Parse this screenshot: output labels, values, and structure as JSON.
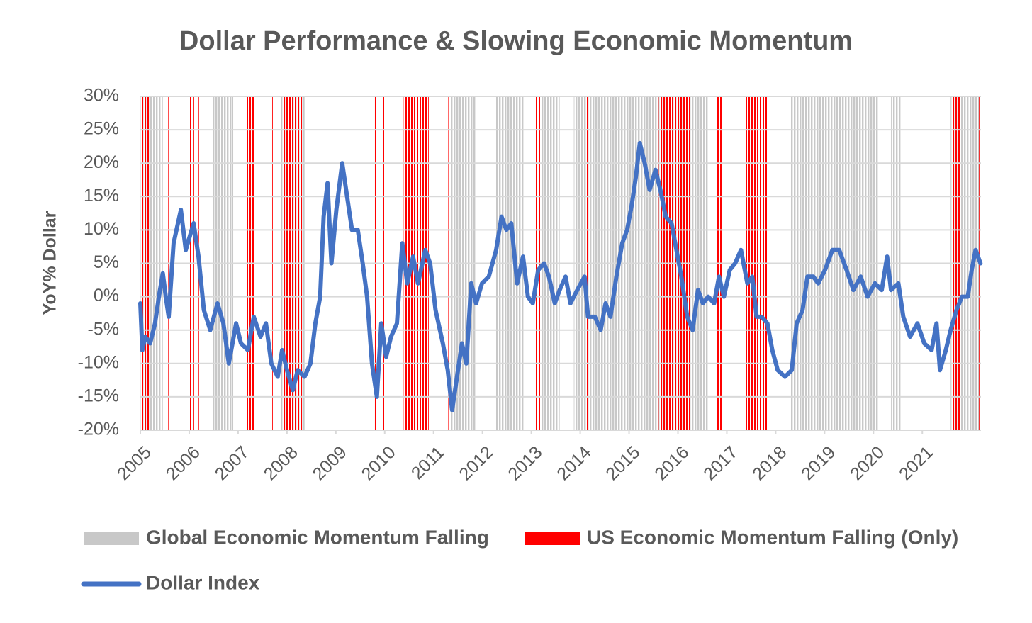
{
  "chart_data": {
    "type": "line",
    "title": "Dollar Performance & Slowing Economic Momentum",
    "ylabel": "YoY% Dollar",
    "xlim": [
      2005,
      2022.2
    ],
    "xticks": [
      2005,
      2006,
      2007,
      2008,
      2009,
      2010,
      2011,
      2012,
      2013,
      2014,
      2015,
      2016,
      2017,
      2018,
      2019,
      2020,
      2021
    ],
    "ylim": [
      -20,
      30
    ],
    "yticks": [
      {
        "value": -20,
        "label": "-20%"
      },
      {
        "value": -15,
        "label": "-15%"
      },
      {
        "value": -10,
        "label": "-10%"
      },
      {
        "value": -5,
        "label": "-5%"
      },
      {
        "value": 0,
        "label": "0%"
      },
      {
        "value": 5,
        "label": "5%"
      },
      {
        "value": 10,
        "label": "10%"
      },
      {
        "value": 15,
        "label": "15%"
      },
      {
        "value": 20,
        "label": "20%"
      },
      {
        "value": 25,
        "label": "25%"
      },
      {
        "value": 30,
        "label": "30%"
      }
    ],
    "grid": true,
    "series": [
      {
        "name": "Global Economic Momentum Falling",
        "color": "#c8c8c8",
        "intervals": [
          [
            2005,
            2005.46
          ],
          [
            2006.49,
            2006.9
          ],
          [
            2007.86,
            2008.36
          ],
          [
            2011.36,
            2011.87
          ],
          [
            2012.28,
            2012.86
          ],
          [
            2013.22,
            2013.58
          ],
          [
            2013.87,
            2016.62
          ],
          [
            2018.29,
            2020.1
          ],
          [
            2020.36,
            2020.57
          ],
          [
            2021.58,
            2022.19
          ]
        ]
      },
      {
        "name": "US Economic Momentum Falling (Only)",
        "color": "#ff0000",
        "intervals": [
          [
            2005,
            2005.2
          ],
          [
            2005.57,
            2005.59
          ],
          [
            2006.0,
            2006.1
          ],
          [
            2006.17,
            2006.2
          ],
          [
            2007.16,
            2007.33
          ],
          [
            2007.68,
            2007.71
          ],
          [
            2007.9,
            2008.33
          ],
          [
            2009.8,
            2009.83
          ],
          [
            2009.96,
            2009.99
          ],
          [
            2010.39,
            2010.9
          ],
          [
            2011.3,
            2011.33
          ],
          [
            2013.07,
            2013.19
          ],
          [
            2014.13,
            2014.2
          ],
          [
            2015.61,
            2016.26
          ],
          [
            2016.8,
            2016.91
          ],
          [
            2017.39,
            2017.83
          ],
          [
            2021.62,
            2021.77
          ],
          [
            2022.16,
            2022.19
          ]
        ]
      },
      {
        "name": "Dollar Index",
        "color": "#4472c4",
        "x": [
          2005.0,
          2005.04,
          2005.1,
          2005.2,
          2005.3,
          2005.38,
          2005.46,
          2005.52,
          2005.58,
          2005.68,
          2005.83,
          2005.93,
          2006.09,
          2006.19,
          2006.3,
          2006.43,
          2006.58,
          2006.7,
          2006.81,
          2006.96,
          2007.06,
          2007.2,
          2007.32,
          2007.46,
          2007.57,
          2007.68,
          2007.81,
          2007.9,
          2008.0,
          2008.12,
          2008.22,
          2008.36,
          2008.48,
          2008.58,
          2008.68,
          2008.75,
          2008.83,
          2008.91,
          2009.01,
          2009.13,
          2009.23,
          2009.33,
          2009.45,
          2009.55,
          2009.64,
          2009.74,
          2009.84,
          2009.93,
          2010.03,
          2010.13,
          2010.25,
          2010.36,
          2010.46,
          2010.58,
          2010.68,
          2010.83,
          2010.93,
          2011.04,
          2011.19,
          2011.29,
          2011.38,
          2011.48,
          2011.58,
          2011.67,
          2011.77,
          2011.87,
          2011.99,
          2012.13,
          2012.28,
          2012.39,
          2012.49,
          2012.59,
          2012.71,
          2012.83,
          2012.93,
          2013.03,
          2013.14,
          2013.26,
          2013.36,
          2013.48,
          2013.58,
          2013.7,
          2013.8,
          2013.94,
          2014.09,
          2014.16,
          2014.3,
          2014.42,
          2014.52,
          2014.62,
          2014.74,
          2014.86,
          2014.96,
          2015.06,
          2015.14,
          2015.22,
          2015.32,
          2015.42,
          2015.54,
          2015.64,
          2015.75,
          2015.87,
          2015.97,
          2016.07,
          2016.19,
          2016.3,
          2016.41,
          2016.51,
          2016.62,
          2016.74,
          2016.84,
          2016.94,
          2017.06,
          2017.17,
          2017.29,
          2017.42,
          2017.52,
          2017.61,
          2017.71,
          2017.83,
          2017.93,
          2018.04,
          2018.19,
          2018.33,
          2018.43,
          2018.55,
          2018.65,
          2018.77,
          2018.87,
          2019.01,
          2019.16,
          2019.3,
          2019.45,
          2019.59,
          2019.74,
          2019.88,
          2020.03,
          2020.17,
          2020.28,
          2020.36,
          2020.51,
          2020.61,
          2020.75,
          2020.9,
          2021.04,
          2021.19,
          2021.29,
          2021.36,
          2021.48,
          2021.58,
          2021.7,
          2021.81,
          2021.93,
          2022.01,
          2022.09,
          2022.19
        ],
        "values": [
          -1,
          -8,
          -6,
          -7,
          -4,
          0,
          3.5,
          0,
          -3,
          8,
          13,
          7,
          11,
          6,
          -2,
          -5,
          -1,
          -4,
          -10,
          -4,
          -7,
          -8,
          -3,
          -6,
          -4,
          -10,
          -12,
          -8,
          -11,
          -14,
          -11,
          -12,
          -10,
          -4,
          0,
          12,
          17,
          5,
          13,
          20,
          15,
          10,
          10,
          5,
          0,
          -10,
          -15,
          -4,
          -9,
          -6,
          -4,
          8,
          2,
          6,
          2,
          7,
          5,
          -2,
          -7,
          -11,
          -17,
          -12,
          -7,
          -10,
          2,
          -1,
          2,
          3,
          7,
          12,
          10,
          11,
          2,
          6,
          0,
          -1,
          4,
          5,
          3,
          -1,
          1,
          3,
          -1,
          1,
          3,
          -3,
          -3,
          -5,
          -1,
          -3,
          3,
          8,
          10,
          14,
          18,
          23,
          20,
          16,
          19,
          16,
          12,
          11,
          7,
          3,
          -3,
          -5,
          1,
          -1,
          0,
          -1,
          3,
          0,
          4,
          5,
          7,
          2,
          3,
          -3,
          -3,
          -4,
          -8,
          -11,
          -12,
          -11,
          -4,
          -2,
          3,
          3,
          2,
          4,
          7,
          7,
          4,
          1,
          3,
          0,
          2,
          1,
          6,
          1,
          2,
          -3,
          -6,
          -4,
          -7,
          -8,
          -4,
          -11,
          -8,
          -5,
          -2,
          0,
          0,
          4,
          7,
          5
        ]
      }
    ]
  }
}
